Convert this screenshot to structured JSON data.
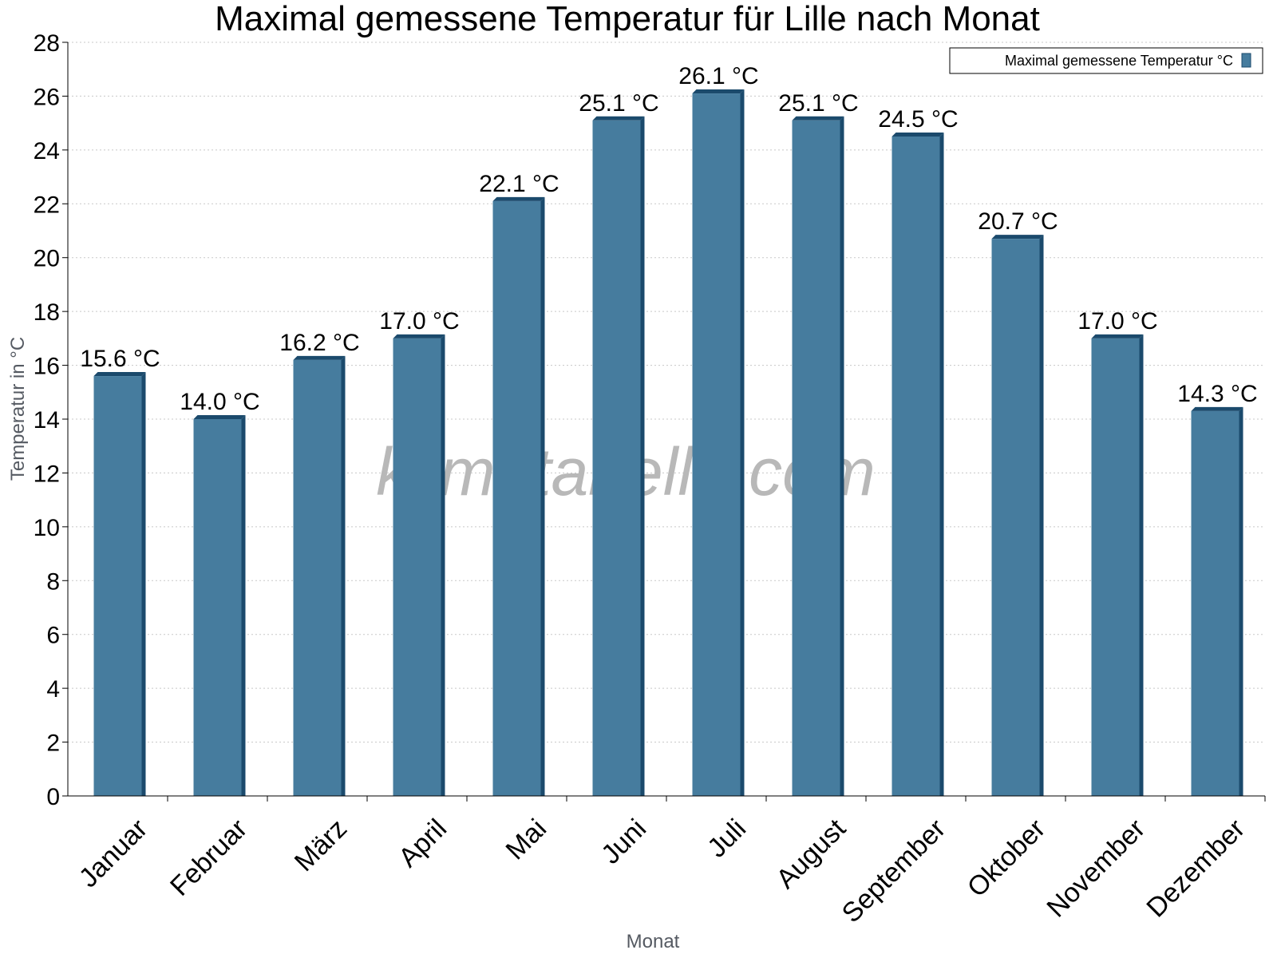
{
  "chart_data": {
    "type": "bar",
    "title": "Maximal gemessene Temperatur für Lille nach Monat",
    "xlabel": "Monat",
    "ylabel": "Temperatur in °C",
    "categories": [
      "Januar",
      "Februar",
      "März",
      "April",
      "Mai",
      "Juni",
      "Juli",
      "August",
      "September",
      "Oktober",
      "November",
      "Dezember"
    ],
    "series": [
      {
        "name": "Maximal gemessene Temperatur °C",
        "values": [
          15.6,
          14.0,
          16.2,
          17.0,
          22.1,
          25.1,
          26.1,
          25.1,
          24.5,
          20.7,
          17.0,
          14.3
        ],
        "labels": [
          "15.6 °C",
          "14.0 °C",
          "16.2 °C",
          "17.0 °C",
          "22.1 °C",
          "25.1 °C",
          "26.1 °C",
          "25.1 °C",
          "24.5 °C",
          "20.7 °C",
          "17.0 °C",
          "14.3 °C"
        ]
      }
    ],
    "ylim": [
      0,
      28
    ],
    "yticks": [
      "0",
      "2",
      "4",
      "6",
      "8",
      "10",
      "12",
      "14",
      "16",
      "18",
      "20",
      "22",
      "24",
      "26",
      "28"
    ],
    "grid": true,
    "legend_position": "top-right",
    "colors": {
      "bar": "#467c9e",
      "bar_shade": "#1b4a6c",
      "grid": "#c8c8c8"
    },
    "watermark": "klimatabelle.com"
  }
}
